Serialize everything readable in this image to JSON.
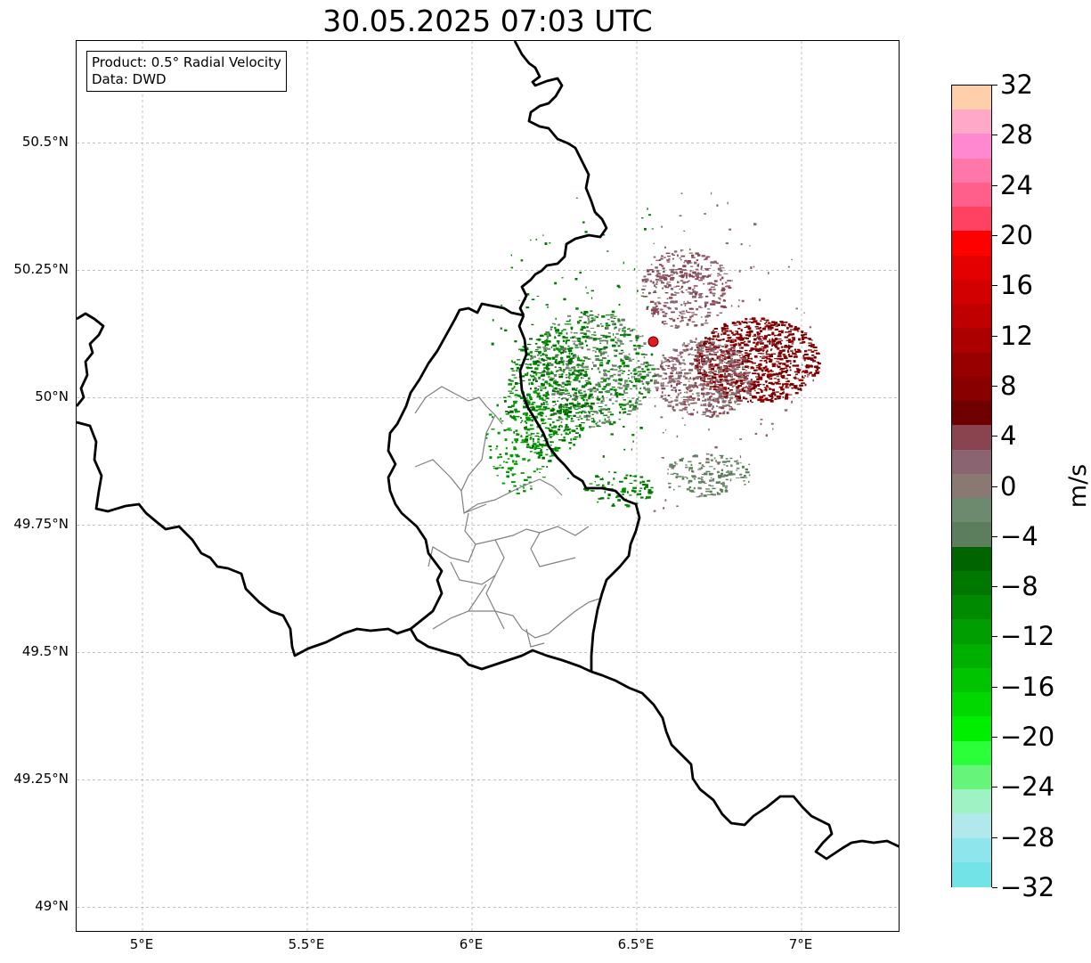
{
  "title": "30.05.2025 07:03 UTC",
  "info": {
    "product": "Product: 0.5° Radial Velocity",
    "source": "Data: DWD"
  },
  "map": {
    "lon_range": [
      4.8,
      7.3
    ],
    "lat_range": [
      48.95,
      50.7
    ],
    "x_ticks": [
      {
        "lon": 5.0,
        "label": "5°E"
      },
      {
        "lon": 5.5,
        "label": "5.5°E"
      },
      {
        "lon": 6.0,
        "label": "6°E"
      },
      {
        "lon": 6.5,
        "label": "6.5°E"
      },
      {
        "lon": 7.0,
        "label": "7°E"
      }
    ],
    "y_ticks": [
      {
        "lat": 50.5,
        "label": "50.5°N"
      },
      {
        "lat": 50.25,
        "label": "50.25°N"
      },
      {
        "lat": 50.0,
        "label": "50°N"
      },
      {
        "lat": 49.75,
        "label": "49.75°N"
      },
      {
        "lat": 49.5,
        "label": "49.5°N"
      },
      {
        "lat": 49.25,
        "label": "49.25°N"
      },
      {
        "lat": 49.0,
        "label": "49°N"
      }
    ],
    "gridlines": true,
    "radar_site": {
      "lon": 6.55,
      "lat": 50.11,
      "color": "#e41a1c"
    },
    "border_color": "#000000",
    "admin_color": "#808080"
  },
  "colorbar": {
    "label": "m/s",
    "min": -32,
    "max": 32,
    "tick_labels": [
      "32",
      "28",
      "24",
      "20",
      "16",
      "12",
      "8",
      "4",
      "0",
      "−4",
      "−8",
      "−12",
      "−16",
      "−20",
      "−24",
      "−28",
      "−32"
    ],
    "tick_values": [
      32,
      28,
      24,
      20,
      16,
      12,
      8,
      4,
      0,
      -4,
      -8,
      -12,
      -16,
      -20,
      -24,
      -28,
      -32
    ],
    "colors_top_to_bottom": [
      "#ffcfac",
      "#ffa8c8",
      "#ff88d0",
      "#ff77a8",
      "#ff5f8a",
      "#ff4262",
      "#ff0000",
      "#e40000",
      "#d20000",
      "#c00000",
      "#ac0000",
      "#980000",
      "#880000",
      "#6e0000",
      "#8a4450",
      "#8a6470",
      "#8a7872",
      "#6e8a6e",
      "#5c7e5c",
      "#006400",
      "#007800",
      "#008a00",
      "#009e00",
      "#00b000",
      "#00c400",
      "#00d800",
      "#00ee00",
      "#2aff3a",
      "#66f57a",
      "#9ff2c4",
      "#b0e8ec",
      "#8ee6ec",
      "#72e4e8"
    ]
  }
}
